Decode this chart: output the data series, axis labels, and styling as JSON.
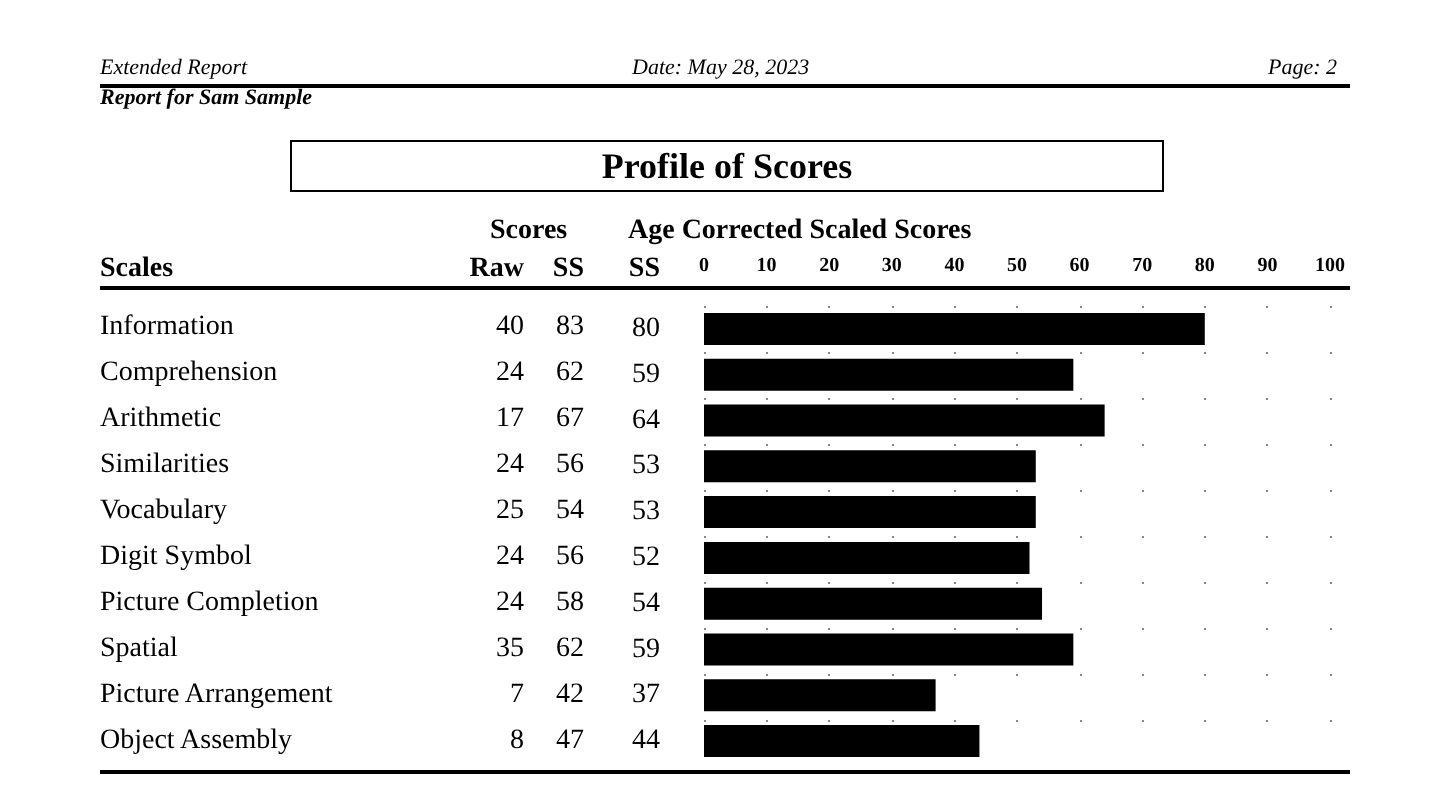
{
  "chart_data": [
    {
      "type": "other",
      "title": "Profile of Scores",
      "ylabel": "Scales",
      "annotations": [
        "Extended Report",
        "Date: May 28, 2023",
        "Page: 2",
        "Report for Sam Sample",
        "Scores"
      ],
      "data_labels": true,
      "categories": [
        "Information",
        "Comprehension",
        "Arithmetic",
        "Similarities",
        "Vocabulary",
        "Digit Symbol",
        "Picture Completion",
        "Spatial",
        "Picture Arrangement",
        "Object Assembly"
      ],
      "series": [
        {
          "name": "Raw",
          "values": [
            40,
            24,
            17,
            24,
            25,
            24,
            24,
            35,
            7,
            8
          ]
        },
        {
          "name": "SS",
          "values": [
            83,
            62,
            67,
            56,
            54,
            56,
            58,
            62,
            42,
            47
          ]
        }
      ]
    },
    {
      "type": "bar",
      "orientation": "horizontal",
      "annotations": [
        "Age Corrected Scaled Scores"
      ],
      "categories": [
        null,
        null,
        null,
        null,
        null,
        null,
        null,
        null,
        null,
        null
      ],
      "series": [
        {
          "name": "SS",
          "type": "bar",
          "color": "#000000",
          "values": [
            80,
            59,
            64,
            53,
            53,
            52,
            54,
            59,
            37,
            44
          ]
        }
      ],
      "data_labels": true,
      "xlim": [
        0,
        100
      ],
      "xticks": [
        0,
        10,
        20,
        30,
        40,
        50,
        60,
        70,
        80,
        90,
        100
      ],
      "grid": "x",
      "legend": false
    }
  ]
}
